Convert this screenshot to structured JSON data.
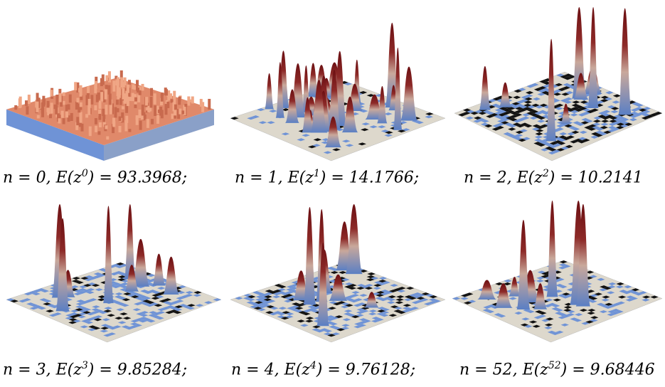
{
  "figure": {
    "panels": [
      {
        "n": "0",
        "exp": "0",
        "energy": "93.3968",
        "sep": ";",
        "surface": "dense-rough",
        "peaks": "many-low",
        "floor_pattern": "none"
      },
      {
        "n": "1",
        "exp": "1",
        "energy": "14.1766",
        "sep": ";",
        "surface": "many-peaks",
        "peaks": "many-medium",
        "floor_pattern": "sparse"
      },
      {
        "n": "2",
        "exp": "2",
        "energy": "10.2141",
        "sep": "",
        "surface": "few-tall-peaks",
        "peaks": "few-tall",
        "floor_pattern": "checker-dense"
      },
      {
        "n": "3",
        "exp": "3",
        "energy": "9.85284",
        "sep": ";",
        "surface": "few-tall-peaks",
        "peaks": "few-tall",
        "floor_pattern": "maze"
      },
      {
        "n": "4",
        "exp": "4",
        "energy": "9.76128",
        "sep": ";",
        "surface": "few-tall-peaks",
        "peaks": "few-tall",
        "floor_pattern": "maze-dense"
      },
      {
        "n": "52",
        "exp": "52",
        "energy": "9.68446",
        "sep": "",
        "surface": "few-tall-peaks",
        "peaks": "few-tall",
        "floor_pattern": "maze-fine"
      }
    ],
    "colors": {
      "peak_top": "#6b0f12",
      "peak_mid": "#c9a89b",
      "peak_base": "#5a7fc4",
      "floor_light": "#ddd8cc",
      "floor_blue": "#6f93d6",
      "floor_dark": "#111111",
      "dense_surface": "#e0896a"
    }
  }
}
